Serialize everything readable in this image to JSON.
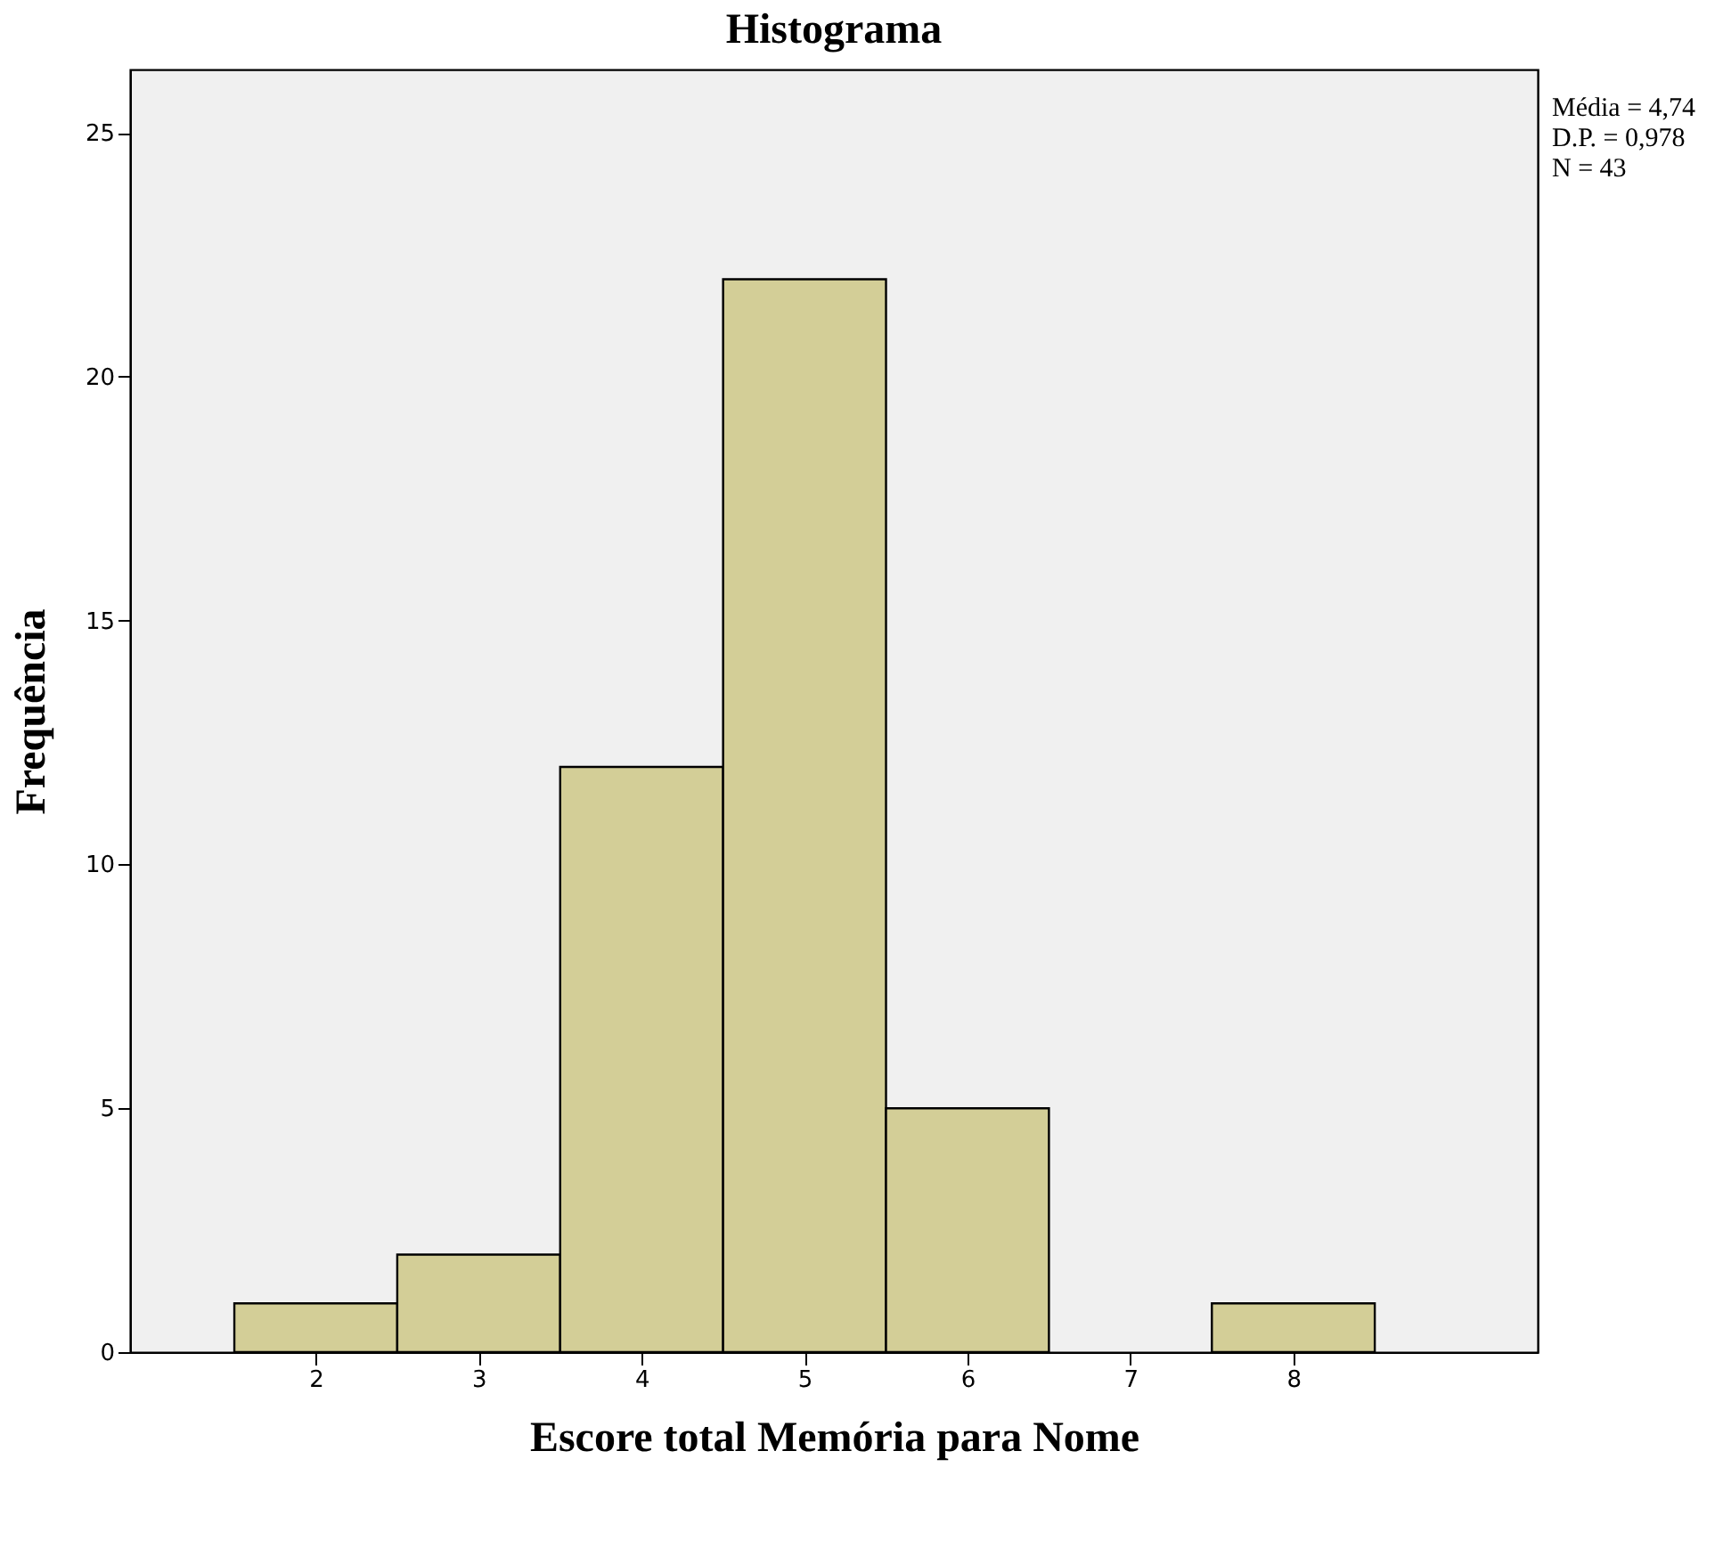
{
  "chart_data": {
    "type": "histogram",
    "title": "Histograma",
    "xlabel": "Escore total Memória para Nome",
    "ylabel": "Frequência",
    "bins": [
      1.5,
      2.5,
      3.5,
      4.5,
      5.5,
      6.5,
      7.5,
      8.5
    ],
    "values": [
      1,
      2,
      12,
      22,
      5,
      0,
      1
    ],
    "color": "#d3ce97",
    "xlim": [
      0.86,
      9.5
    ],
    "xticks": [
      2,
      3,
      4,
      5,
      6,
      7,
      8
    ],
    "ylim": [
      0,
      26.3
    ],
    "yticks": [
      0,
      5,
      10,
      15,
      20,
      25
    ],
    "grid": false,
    "annotations": [
      "Média = 4,74",
      "D.P. = 0,978",
      "N = 43"
    ]
  }
}
